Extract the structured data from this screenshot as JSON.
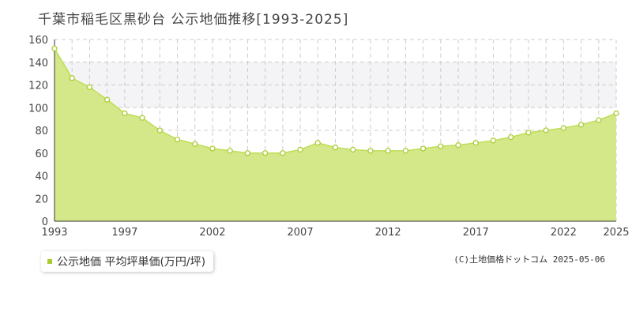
{
  "title": "千葉市稲毛区黒砂台 公示地価推移[1993-2025]",
  "legend_label": "公示地価 平均坪単価(万円/坪)",
  "credit": "(C)土地価格ドットコム 2025-05-06",
  "colors": {
    "fill": "#d4e88a",
    "line": "#bedd55",
    "marker": "#aacc33",
    "grid": "#cccccc",
    "band": "#f4f4f6"
  },
  "chart_data": {
    "type": "area",
    "title": "千葉市稲毛区黒砂台 公示地価推移[1993-2025]",
    "xlabel": "",
    "ylabel": "",
    "x": [
      1993,
      1994,
      1995,
      1996,
      1997,
      1998,
      1999,
      2000,
      2001,
      2002,
      2003,
      2004,
      2005,
      2006,
      2007,
      2008,
      2009,
      2010,
      2011,
      2012,
      2013,
      2014,
      2015,
      2016,
      2017,
      2018,
      2019,
      2020,
      2021,
      2022,
      2023,
      2024,
      2025
    ],
    "series": [
      {
        "name": "公示地価 平均坪単価(万円/坪)",
        "values": [
          152,
          126,
          118,
          107,
          95,
          91,
          80,
          72,
          68,
          64,
          62,
          60,
          60,
          60,
          63,
          69,
          65,
          63,
          62,
          62,
          62,
          64,
          66,
          67,
          69,
          71,
          74,
          78,
          80,
          82,
          85,
          89,
          95
        ]
      }
    ],
    "xticks": [
      "1993",
      "1997",
      "2002",
      "2007",
      "2012",
      "2017",
      "2022",
      "2025"
    ],
    "yticks": [
      "0",
      "20",
      "40",
      "60",
      "80",
      "100",
      "120",
      "140",
      "160"
    ],
    "ylim": [
      0,
      160
    ],
    "xlim": [
      1993,
      2025
    ],
    "grid": true,
    "legend": "bottom-left"
  }
}
